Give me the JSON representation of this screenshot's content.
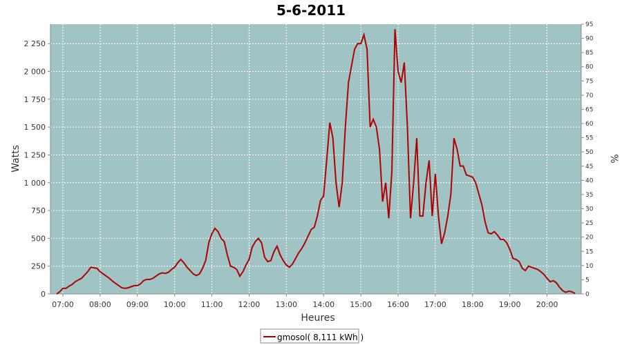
{
  "chart_data": {
    "type": "line",
    "title": "5-6-2011",
    "xlabel": "Heures",
    "ylabel": "Watts",
    "y2label": "%",
    "x_tick_labels": [
      "07:00",
      "08:00",
      "09:00",
      "10:00",
      "11:00",
      "12:00",
      "13:00",
      "14:00",
      "15:00",
      "16:00",
      "17:00",
      "18:00",
      "19:00",
      "20:00"
    ],
    "y_tick_labels": [
      "0",
      "250",
      "500",
      "750",
      "1 000",
      "1 250",
      "1 500",
      "1 750",
      "2 000",
      "2 250"
    ],
    "y2_tick_labels": [
      "0",
      "5",
      "10",
      "15",
      "20",
      "25",
      "30",
      "35",
      "40",
      "45",
      "50",
      "55",
      "60",
      "65",
      "70",
      "75",
      "80",
      "85",
      "90",
      "95"
    ],
    "xlim": [
      "06:40",
      "20:55"
    ],
    "ylim": [
      0,
      2425
    ],
    "y2lim": [
      0,
      95
    ],
    "grid": true,
    "legend_position": "bottom-center",
    "background_color": "#a0c4c4",
    "line_color": "#b00000",
    "series": [
      {
        "name": "gmosol( 8,111 kWh )",
        "points": [
          [
            "06:50",
            0
          ],
          [
            "06:55",
            20
          ],
          [
            "07:00",
            50
          ],
          [
            "07:05",
            50
          ],
          [
            "07:10",
            70
          ],
          [
            "07:15",
            85
          ],
          [
            "07:20",
            110
          ],
          [
            "07:25",
            125
          ],
          [
            "07:30",
            140
          ],
          [
            "07:35",
            170
          ],
          [
            "07:40",
            200
          ],
          [
            "07:45",
            240
          ],
          [
            "07:50",
            235
          ],
          [
            "07:55",
            230
          ],
          [
            "08:00",
            200
          ],
          [
            "08:05",
            180
          ],
          [
            "08:10",
            160
          ],
          [
            "08:15",
            140
          ],
          [
            "08:20",
            115
          ],
          [
            "08:25",
            95
          ],
          [
            "08:30",
            75
          ],
          [
            "08:35",
            55
          ],
          [
            "08:40",
            50
          ],
          [
            "08:45",
            55
          ],
          [
            "08:50",
            65
          ],
          [
            "08:55",
            75
          ],
          [
            "09:00",
            75
          ],
          [
            "09:05",
            90
          ],
          [
            "09:10",
            120
          ],
          [
            "09:15",
            130
          ],
          [
            "09:20",
            130
          ],
          [
            "09:25",
            140
          ],
          [
            "09:30",
            160
          ],
          [
            "09:35",
            180
          ],
          [
            "09:40",
            190
          ],
          [
            "09:45",
            185
          ],
          [
            "09:50",
            195
          ],
          [
            "09:55",
            220
          ],
          [
            "10:00",
            240
          ],
          [
            "10:05",
            280
          ],
          [
            "10:10",
            310
          ],
          [
            "10:15",
            280
          ],
          [
            "10:20",
            240
          ],
          [
            "10:25",
            210
          ],
          [
            "10:30",
            180
          ],
          [
            "10:35",
            165
          ],
          [
            "10:40",
            180
          ],
          [
            "10:45",
            230
          ],
          [
            "10:50",
            300
          ],
          [
            "10:55",
            460
          ],
          [
            "11:00",
            540
          ],
          [
            "11:05",
            590
          ],
          [
            "11:10",
            560
          ],
          [
            "11:15",
            500
          ],
          [
            "11:20",
            470
          ],
          [
            "11:25",
            350
          ],
          [
            "11:30",
            250
          ],
          [
            "11:35",
            240
          ],
          [
            "11:40",
            220
          ],
          [
            "11:45",
            160
          ],
          [
            "11:50",
            200
          ],
          [
            "11:55",
            260
          ],
          [
            "12:00",
            310
          ],
          [
            "12:05",
            420
          ],
          [
            "12:10",
            470
          ],
          [
            "12:15",
            500
          ],
          [
            "12:20",
            460
          ],
          [
            "12:25",
            330
          ],
          [
            "12:30",
            290
          ],
          [
            "12:35",
            300
          ],
          [
            "12:40",
            380
          ],
          [
            "12:45",
            430
          ],
          [
            "12:50",
            350
          ],
          [
            "12:55",
            300
          ],
          [
            "13:00",
            260
          ],
          [
            "13:05",
            240
          ],
          [
            "13:10",
            270
          ],
          [
            "13:15",
            320
          ],
          [
            "13:20",
            370
          ],
          [
            "13:25",
            410
          ],
          [
            "13:30",
            460
          ],
          [
            "13:35",
            520
          ],
          [
            "13:40",
            580
          ],
          [
            "13:45",
            600
          ],
          [
            "13:50",
            700
          ],
          [
            "13:55",
            840
          ],
          [
            "14:00",
            880
          ],
          [
            "14:05",
            1200
          ],
          [
            "14:10",
            1540
          ],
          [
            "14:15",
            1400
          ],
          [
            "14:20",
            1000
          ],
          [
            "14:25",
            780
          ],
          [
            "14:30",
            1000
          ],
          [
            "14:35",
            1500
          ],
          [
            "14:40",
            1900
          ],
          [
            "14:45",
            2050
          ],
          [
            "14:50",
            2200
          ],
          [
            "14:55",
            2250
          ],
          [
            "15:00",
            2250
          ],
          [
            "15:05",
            2330
          ],
          [
            "15:10",
            2200
          ],
          [
            "15:15",
            1500
          ],
          [
            "15:20",
            1570
          ],
          [
            "15:25",
            1500
          ],
          [
            "15:30",
            1300
          ],
          [
            "15:35",
            830
          ],
          [
            "15:40",
            1000
          ],
          [
            "15:45",
            680
          ],
          [
            "15:50",
            1100
          ],
          [
            "15:55",
            2380
          ],
          [
            "16:00",
            2000
          ],
          [
            "16:05",
            1900
          ],
          [
            "16:10",
            2080
          ],
          [
            "16:15",
            1500
          ],
          [
            "16:20",
            680
          ],
          [
            "16:25",
            1000
          ],
          [
            "16:30",
            1400
          ],
          [
            "16:35",
            700
          ],
          [
            "16:40",
            700
          ],
          [
            "16:45",
            1000
          ],
          [
            "16:50",
            1200
          ],
          [
            "16:55",
            700
          ],
          [
            "17:00",
            1080
          ],
          [
            "17:05",
            700
          ],
          [
            "17:10",
            450
          ],
          [
            "17:15",
            550
          ],
          [
            "17:20",
            700
          ],
          [
            "17:25",
            900
          ],
          [
            "17:30",
            1400
          ],
          [
            "17:35",
            1300
          ],
          [
            "17:40",
            1150
          ],
          [
            "17:45",
            1150
          ],
          [
            "17:50",
            1070
          ],
          [
            "17:55",
            1060
          ],
          [
            "18:00",
            1050
          ],
          [
            "18:05",
            1000
          ],
          [
            "18:10",
            900
          ],
          [
            "18:15",
            800
          ],
          [
            "18:20",
            650
          ],
          [
            "18:25",
            550
          ],
          [
            "18:30",
            540
          ],
          [
            "18:35",
            560
          ],
          [
            "18:40",
            530
          ],
          [
            "18:45",
            490
          ],
          [
            "18:50",
            490
          ],
          [
            "18:55",
            460
          ],
          [
            "19:00",
            400
          ],
          [
            "19:05",
            320
          ],
          [
            "19:10",
            310
          ],
          [
            "19:15",
            290
          ],
          [
            "19:20",
            230
          ],
          [
            "19:25",
            210
          ],
          [
            "19:30",
            250
          ],
          [
            "19:35",
            240
          ],
          [
            "19:40",
            230
          ],
          [
            "19:45",
            220
          ],
          [
            "19:50",
            200
          ],
          [
            "19:55",
            175
          ],
          [
            "20:00",
            140
          ],
          [
            "20:05",
            110
          ],
          [
            "20:10",
            120
          ],
          [
            "20:15",
            100
          ],
          [
            "20:20",
            60
          ],
          [
            "20:25",
            30
          ],
          [
            "20:30",
            15
          ],
          [
            "20:35",
            25
          ],
          [
            "20:40",
            20
          ],
          [
            "20:45",
            5
          ]
        ]
      }
    ]
  }
}
